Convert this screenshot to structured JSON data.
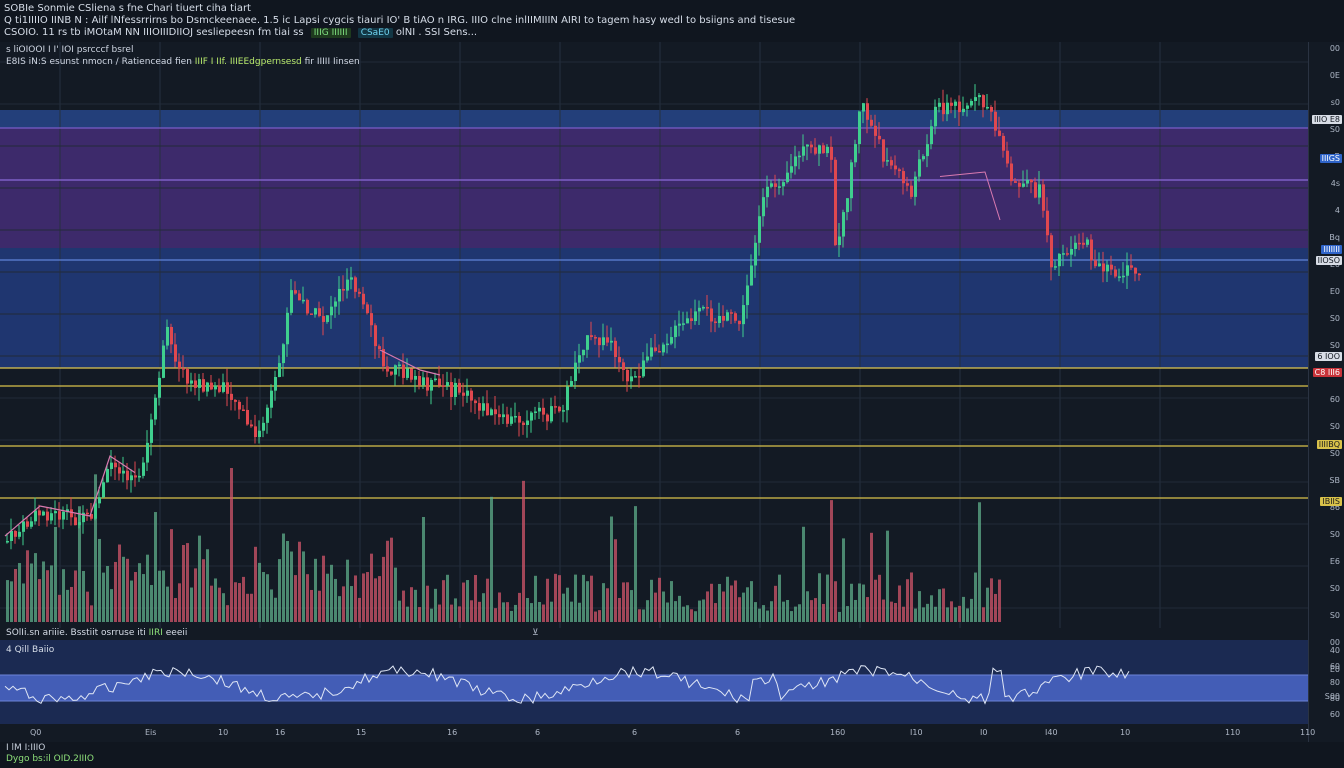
{
  "header": {
    "line1": "SOBIe Sonmie CSliena s fne Chari tiuert ciha tiart",
    "line2_text": "Q ti1IIIIO IINB N : Ailf lNfessrrirns bo Dsmckeenaee. 1.5 ic Lapsi  cygcis tiauri IO' B tiAO n IRG. IIIO clne inlIIMIIIN AIRI to tagem hasy wedl to bsiigns and tisesue",
    "line3_text": "CSOIO. 11 rs tb iMOtaM  NN IIIOIIIDIIOJ sesliepeesn fm tiai ss",
    "line3_badge1": "IIIG IIIIII",
    "line3_badge2": "CSaE0",
    "line3_tail": "olNI  . SSI Sens..."
  },
  "pane": {
    "label1": "s liOIOOI I I' IOI psrcccf bsrel",
    "label2_pre": "E8IS iN:S esunst nmocn / Ratiencead fien",
    "label2_hl": "IIIF I IIf. IIIEEdgpernsesd",
    "label2_post": "fir IIIII Iinsen"
  },
  "price_axis": {
    "ticks": [
      "00",
      "0E",
      "s0",
      "S0",
      "eB",
      "4s",
      "4",
      "Bq",
      "E0",
      "E0",
      "S0",
      "S0",
      "S0",
      "60",
      "S0",
      "S0",
      "SB",
      "86",
      "S0",
      "E6",
      "S0",
      "S0",
      "00",
      "E0",
      "S00"
    ],
    "tags": [
      {
        "label": "IIIO E8",
        "style": "white"
      },
      {
        "label": "IIIGS",
        "style": "blue"
      },
      {
        "label": "IIIIIII",
        "style": "blue"
      },
      {
        "label": "IIOSO",
        "style": "white"
      },
      {
        "label": "6 IOO",
        "style": "white"
      },
      {
        "label": "C8 III6",
        "style": "red"
      },
      {
        "label": "IIIIBQ",
        "style": "yellow"
      },
      {
        "label": "IBIIS",
        "style": "yellow"
      }
    ]
  },
  "volume": {
    "label_pre": "SOlIi.sn  ariiie. Bsstiit osrruse iti",
    "label_hl": "IIRI",
    "label_post": "eeeii"
  },
  "oscillator": {
    "label": "4 Qill Baiio",
    "ticks": [
      "40",
      "60",
      "80",
      "80",
      "60"
    ]
  },
  "time_axis": {
    "ticks": [
      "Q0",
      "Eis",
      "10",
      "16",
      "15",
      "16",
      "6",
      "6",
      "6",
      "160",
      "I10",
      "I0",
      "I40",
      "10",
      "110",
      "110"
    ]
  },
  "footer": {
    "line1": "I lM I:IIIO",
    "line2": "Dygo bs:il OID.2IIIO"
  },
  "colors": {
    "background": "#131a24",
    "up_candle": "#3fcf8e",
    "down_candle": "#e0484f",
    "purple_zone": "#3d2a6b",
    "blue_zone": "#1f3670",
    "yellow_line": "#d9c24a",
    "osc_band": "#4a66c8"
  },
  "icons": {
    "crosshair": "crosshair-icon"
  }
}
